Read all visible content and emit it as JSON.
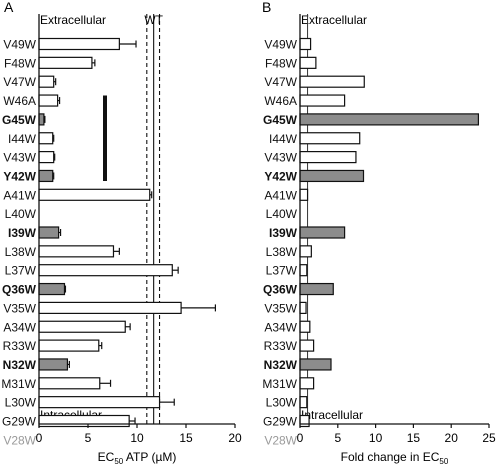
{
  "chart_data": [
    {
      "panel_label": "A",
      "type": "bar",
      "orientation": "horizontal",
      "top_label": "Extracellular",
      "bottom_label": "Intracellular",
      "xlabel_prefix": "EC",
      "xlabel_sub": "50",
      "xlabel_suffix": " ATP (µM)",
      "xlim": [
        0,
        20
      ],
      "xticks": [
        0,
        5,
        10,
        15,
        20
      ],
      "reference_label": "WT",
      "reference_lines": [
        11.0,
        11.7,
        12.3
      ],
      "bracket_between": [
        "W46A",
        "Y42W"
      ],
      "categories": [
        "V49W",
        "F48W",
        "V47W",
        "W46A",
        "G45W",
        "I44W",
        "V43W",
        "Y42W",
        "A41W",
        "L40W",
        "I39W",
        "L38W",
        "L37W",
        "Q36W",
        "V35W",
        "A34W",
        "R33W",
        "N32W",
        "M31W",
        "L30W",
        "G29W",
        "V28W"
      ],
      "bold": [
        "G45W",
        "Y42W",
        "I39W",
        "Q36W",
        "N32W"
      ],
      "grey_label": [
        "V28W"
      ],
      "values": [
        8.2,
        5.4,
        1.5,
        1.9,
        0.5,
        1.4,
        1.5,
        1.4,
        11.3,
        null,
        2.0,
        7.6,
        13.6,
        2.6,
        14.5,
        8.8,
        6.1,
        2.9,
        6.2,
        12.3,
        9.2,
        null
      ],
      "errors": [
        1.7,
        0.3,
        0.2,
        0.2,
        0.1,
        0.1,
        0.1,
        0.1,
        0.2,
        null,
        0.2,
        0.6,
        0.6,
        0.1,
        3.5,
        0.5,
        0.3,
        0.2,
        1.1,
        1.5,
        0.6,
        null
      ],
      "filled": [
        false,
        false,
        false,
        false,
        true,
        false,
        false,
        true,
        false,
        false,
        true,
        false,
        false,
        true,
        false,
        false,
        false,
        true,
        false,
        false,
        false,
        false
      ],
      "colors": {
        "filled": "#8c8c8c",
        "open": "#ffffff",
        "stroke": "#111111",
        "grey_text": "#9a9a9a"
      }
    },
    {
      "panel_label": "B",
      "type": "bar",
      "orientation": "horizontal",
      "top_label": "Extracellular",
      "bottom_label": "Intracellular",
      "xlabel_prefix": "Fold change in EC",
      "xlabel_sub": "50",
      "xlabel_suffix": "",
      "xlim": [
        0,
        25
      ],
      "xticks": [
        0,
        5,
        10,
        15,
        20,
        25
      ],
      "reference_value": 1,
      "categories": [
        "V49W",
        "F48W",
        "V47W",
        "W46A",
        "G45W",
        "I44W",
        "V43W",
        "Y42W",
        "A41W",
        "L40W",
        "I39W",
        "L38W",
        "L37W",
        "Q36W",
        "V35W",
        "A34W",
        "R33W",
        "N32W",
        "M31W",
        "L30W",
        "G29W",
        "V28W"
      ],
      "bold": [
        "G45W",
        "Y42W",
        "I39W",
        "Q36W",
        "N32W"
      ],
      "grey_label": [
        "V28W"
      ],
      "values": [
        1.4,
        2.1,
        8.5,
        5.9,
        23.6,
        7.9,
        7.4,
        8.4,
        1.0,
        null,
        5.9,
        1.5,
        0.9,
        4.4,
        0.8,
        1.3,
        1.8,
        4.1,
        1.8,
        0.9,
        1.2,
        null
      ],
      "filled": [
        false,
        false,
        false,
        false,
        true,
        false,
        false,
        true,
        false,
        false,
        true,
        false,
        false,
        true,
        false,
        false,
        false,
        true,
        false,
        false,
        false,
        false
      ],
      "colors": {
        "filled": "#8c8c8c",
        "open": "#ffffff",
        "stroke": "#111111",
        "grey_text": "#9a9a9a"
      }
    }
  ]
}
